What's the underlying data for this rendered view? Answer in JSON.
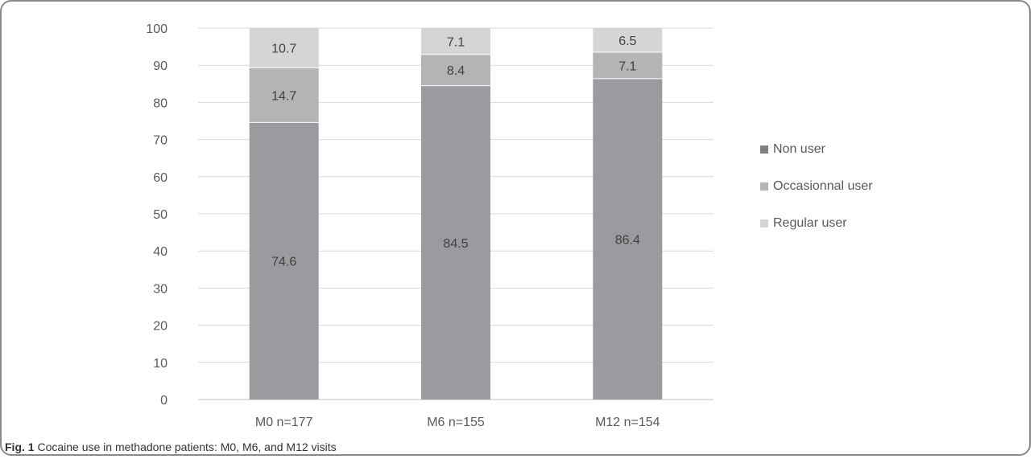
{
  "chart_data": {
    "type": "bar",
    "stacked": true,
    "categories": [
      "M0 n=177",
      "M6 n=155",
      "M12 n=154"
    ],
    "series": [
      {
        "name": "Non user",
        "values": [
          74.6,
          84.5,
          86.4
        ],
        "color": "#9b9b9f"
      },
      {
        "name": "Occasionnal user",
        "values": [
          14.7,
          8.4,
          7.1
        ],
        "color": "#b4b4b6"
      },
      {
        "name": "Regular user",
        "values": [
          10.7,
          7.1,
          6.5
        ],
        "color": "#d5d5d6"
      }
    ],
    "ylim": [
      0,
      100
    ],
    "yticks": [
      0,
      10,
      20,
      30,
      40,
      50,
      60,
      70,
      80,
      90,
      100
    ],
    "grid": true,
    "legend_position": "right"
  },
  "caption": {
    "label": "Fig. 1",
    "text": "Cocaine use in methadone patients: M0, M6, and M12 visits"
  }
}
